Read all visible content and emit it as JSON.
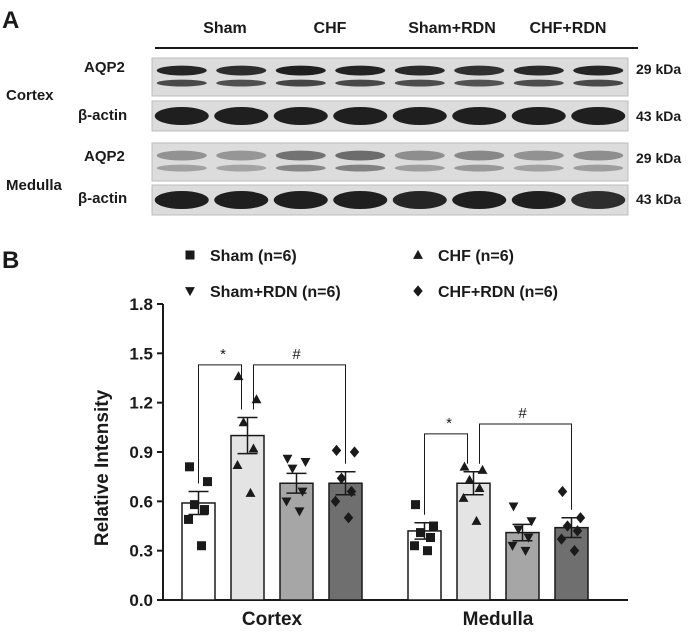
{
  "panel_a": {
    "label": "A",
    "groups": [
      "Sham",
      "CHF",
      "Sham+RDN",
      "CHF+RDN"
    ],
    "sections": [
      {
        "name": "Cortex",
        "rows": [
          {
            "protein": "AQP2",
            "size": "29 kDa"
          },
          {
            "protein": "β-actin",
            "size": "43 kDa"
          }
        ]
      },
      {
        "name": "Medulla",
        "rows": [
          {
            "protein": "AQP2",
            "size": "29 kDa"
          },
          {
            "protein": "β-actin",
            "size": "43 kDa"
          }
        ]
      }
    ],
    "band_intensity": {
      "cortex_aqp2": [
        0.92,
        0.88,
        0.95,
        0.93,
        0.9,
        0.86,
        0.9,
        0.92
      ],
      "cortex_actin": [
        0.95,
        0.95,
        0.95,
        0.95,
        0.95,
        0.95,
        0.95,
        0.95
      ],
      "medulla_aqp2": [
        0.4,
        0.38,
        0.55,
        0.58,
        0.42,
        0.45,
        0.4,
        0.42
      ],
      "medulla_actin": [
        0.95,
        0.95,
        0.95,
        0.95,
        0.92,
        0.95,
        0.95,
        0.88
      ]
    }
  },
  "chart_data": {
    "type": "bar",
    "panel_label": "B",
    "title": "",
    "xlabel": "",
    "ylabel": "Relative Intensity",
    "ylim": [
      0,
      1.8
    ],
    "yticks": [
      "0.0",
      "0.3",
      "0.6",
      "0.9",
      "1.2",
      "1.5",
      "1.8"
    ],
    "categories": [
      "Cortex",
      "Medulla"
    ],
    "legend_position": "top",
    "series": [
      {
        "name": "Sham (n=6)",
        "marker": "square",
        "color": "#ffffff",
        "values": [
          0.59,
          0.42
        ],
        "sem": [
          0.07,
          0.05
        ],
        "points": [
          [
            0.81,
            0.72,
            0.58,
            0.55,
            0.49,
            0.33
          ],
          [
            0.58,
            0.45,
            0.41,
            0.38,
            0.33,
            0.3
          ]
        ]
      },
      {
        "name": "CHF (n=6)",
        "marker": "triangle",
        "color": "#e4e4e4",
        "values": [
          1.0,
          0.71
        ],
        "sem": [
          0.11,
          0.07
        ],
        "points": [
          [
            1.36,
            1.22,
            1.08,
            0.92,
            0.82,
            0.65
          ],
          [
            0.81,
            0.79,
            0.73,
            0.68,
            0.62,
            0.48
          ]
        ]
      },
      {
        "name": "Sham+RDN (n=6)",
        "marker": "triangle-down",
        "color": "#a6a6a6",
        "values": [
          0.71,
          0.41
        ],
        "sem": [
          0.06,
          0.05
        ],
        "points": [
          [
            0.86,
            0.84,
            0.8,
            0.66,
            0.6,
            0.54
          ],
          [
            0.57,
            0.48,
            0.43,
            0.38,
            0.33,
            0.3
          ]
        ]
      },
      {
        "name": "CHF+RDN (n=6)",
        "marker": "diamond",
        "color": "#6f6f6f",
        "values": [
          0.71,
          0.44
        ],
        "sem": [
          0.07,
          0.06
        ],
        "points": [
          [
            0.91,
            0.9,
            0.74,
            0.66,
            0.6,
            0.5
          ],
          [
            0.66,
            0.5,
            0.45,
            0.42,
            0.37,
            0.3
          ]
        ]
      }
    ],
    "significance": [
      {
        "category": "Cortex",
        "from": 0,
        "to": 1,
        "symbol": "*",
        "level": 1.43
      },
      {
        "category": "Cortex",
        "from": 1,
        "to": 3,
        "symbol": "#",
        "level": 1.43
      },
      {
        "category": "Medulla",
        "from": 0,
        "to": 1,
        "symbol": "*",
        "level": 1.01
      },
      {
        "category": "Medulla",
        "from": 1,
        "to": 3,
        "symbol": "#",
        "level": 1.07
      }
    ]
  }
}
